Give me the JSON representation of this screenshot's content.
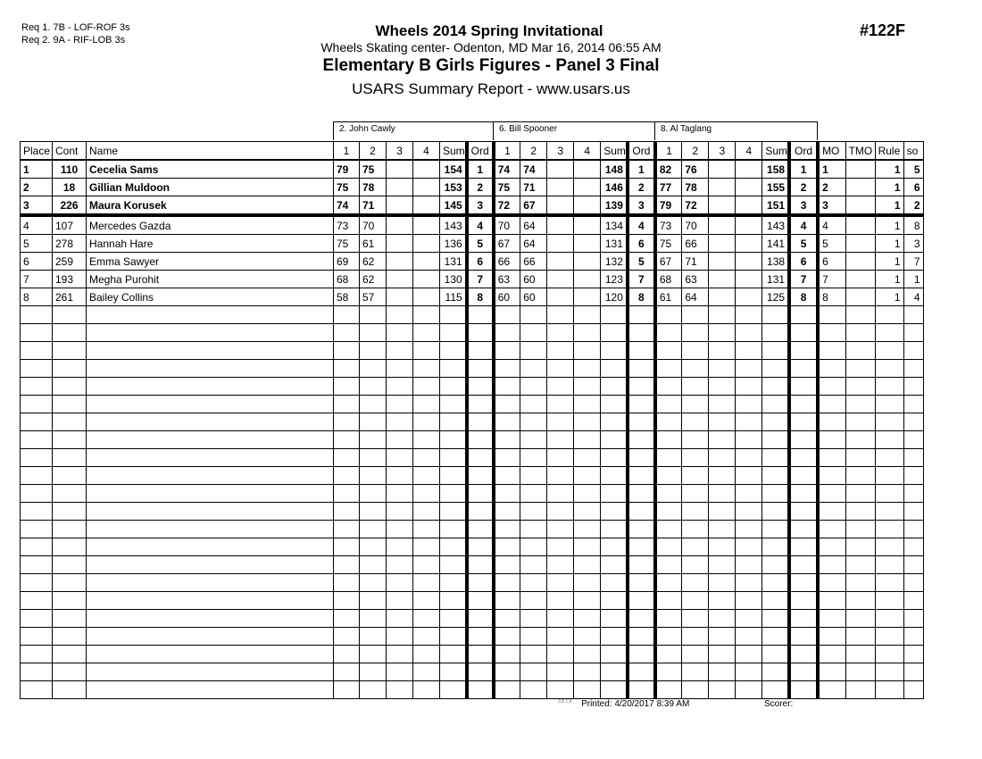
{
  "requirements": [
    "Req 1. 7B - LOF-ROF 3s",
    "Req 2. 9A - RIF-LOB 3s"
  ],
  "title": "Wheels 2014 Spring Invitational",
  "subtitle": "Wheels Skating center- Odenton, MD  Mar 16, 2014  06:55 AM",
  "event_title": "Elementary B Girls Figures - Panel 3 Final",
  "report_title": "USARS Summary Report - www.usars.us",
  "event_number": "#122F",
  "judges": [
    "2.  John Cawly",
    "6.  Bill Spooner",
    "8.  Al Taglang"
  ],
  "columns": {
    "place": "Place",
    "cont": "Cont",
    "name": "Name",
    "scores": [
      "1",
      "2",
      "3",
      "4"
    ],
    "sum": "Sum",
    "ord": "Ord",
    "mo": "MO",
    "tmo": "TMO",
    "rule": "Rule",
    "so": "so"
  },
  "rows": [
    {
      "place": "1",
      "cont": "110",
      "name": "Cecelia Sams",
      "j": [
        [
          "79",
          "75",
          "154",
          "1"
        ],
        [
          "74",
          "74",
          "148",
          "1"
        ],
        [
          "82",
          "76",
          "158",
          "1"
        ]
      ],
      "mo": "1",
      "tmo": "",
      "rule": "1",
      "so": "5"
    },
    {
      "place": "2",
      "cont": "18",
      "name": "Gillian Muldoon",
      "j": [
        [
          "75",
          "78",
          "153",
          "2"
        ],
        [
          "75",
          "71",
          "146",
          "2"
        ],
        [
          "77",
          "78",
          "155",
          "2"
        ]
      ],
      "mo": "2",
      "tmo": "",
      "rule": "1",
      "so": "6"
    },
    {
      "place": "3",
      "cont": "226",
      "name": "Maura Korusek",
      "j": [
        [
          "74",
          "71",
          "145",
          "3"
        ],
        [
          "72",
          "67",
          "139",
          "3"
        ],
        [
          "79",
          "72",
          "151",
          "3"
        ]
      ],
      "mo": "3",
      "tmo": "",
      "rule": "1",
      "so": "2"
    },
    {
      "place": "4",
      "cont": "107",
      "name": "Mercedes Gazda",
      "j": [
        [
          "73",
          "70",
          "143",
          "4"
        ],
        [
          "70",
          "64",
          "134",
          "4"
        ],
        [
          "73",
          "70",
          "143",
          "4"
        ]
      ],
      "mo": "4",
      "tmo": "",
      "rule": "1",
      "so": "8"
    },
    {
      "place": "5",
      "cont": "278",
      "name": "Hannah Hare",
      "j": [
        [
          "75",
          "61",
          "136",
          "5"
        ],
        [
          "67",
          "64",
          "131",
          "6"
        ],
        [
          "75",
          "66",
          "141",
          "5"
        ]
      ],
      "mo": "5",
      "tmo": "",
      "rule": "1",
      "so": "3"
    },
    {
      "place": "6",
      "cont": "259",
      "name": "Emma Sawyer",
      "j": [
        [
          "69",
          "62",
          "131",
          "6"
        ],
        [
          "66",
          "66",
          "132",
          "5"
        ],
        [
          "67",
          "71",
          "138",
          "6"
        ]
      ],
      "mo": "6",
      "tmo": "",
      "rule": "1",
      "so": "7"
    },
    {
      "place": "7",
      "cont": "193",
      "name": "Megha Purohit",
      "j": [
        [
          "68",
          "62",
          "130",
          "7"
        ],
        [
          "63",
          "60",
          "123",
          "7"
        ],
        [
          "68",
          "63",
          "131",
          "7"
        ]
      ],
      "mo": "7",
      "tmo": "",
      "rule": "1",
      "so": "1"
    },
    {
      "place": "8",
      "cont": "261",
      "name": "Bailey Collins",
      "j": [
        [
          "58",
          "57",
          "115",
          "8"
        ],
        [
          "60",
          "60",
          "120",
          "8"
        ],
        [
          "61",
          "64",
          "125",
          "8"
        ]
      ],
      "mo": "8",
      "tmo": "",
      "rule": "1",
      "so": "4"
    }
  ],
  "footer": {
    "version": "3.8.1.8",
    "printed": "Printed:  4/20/2017  8:39 AM",
    "scorer": "Scorer:"
  }
}
